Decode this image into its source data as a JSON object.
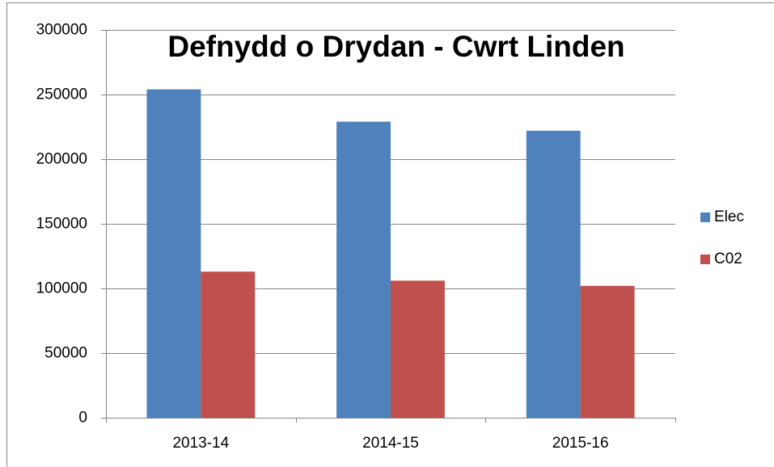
{
  "chart_data": {
    "type": "bar",
    "title": "Defnydd o Drydan - Cwrt Linden",
    "categories": [
      "2013-14",
      "2014-15",
      "2015-16"
    ],
    "series": [
      {
        "name": "Elec",
        "color": "#4f81bd",
        "values": [
          254000,
          229000,
          222000
        ]
      },
      {
        "name": "C02",
        "color": "#c0504d",
        "values": [
          113000,
          106000,
          102000
        ]
      }
    ],
    "ylim": [
      0,
      300000
    ],
    "yticks": [
      0,
      50000,
      100000,
      150000,
      200000,
      250000,
      300000
    ],
    "grid": true,
    "legend": "right"
  }
}
